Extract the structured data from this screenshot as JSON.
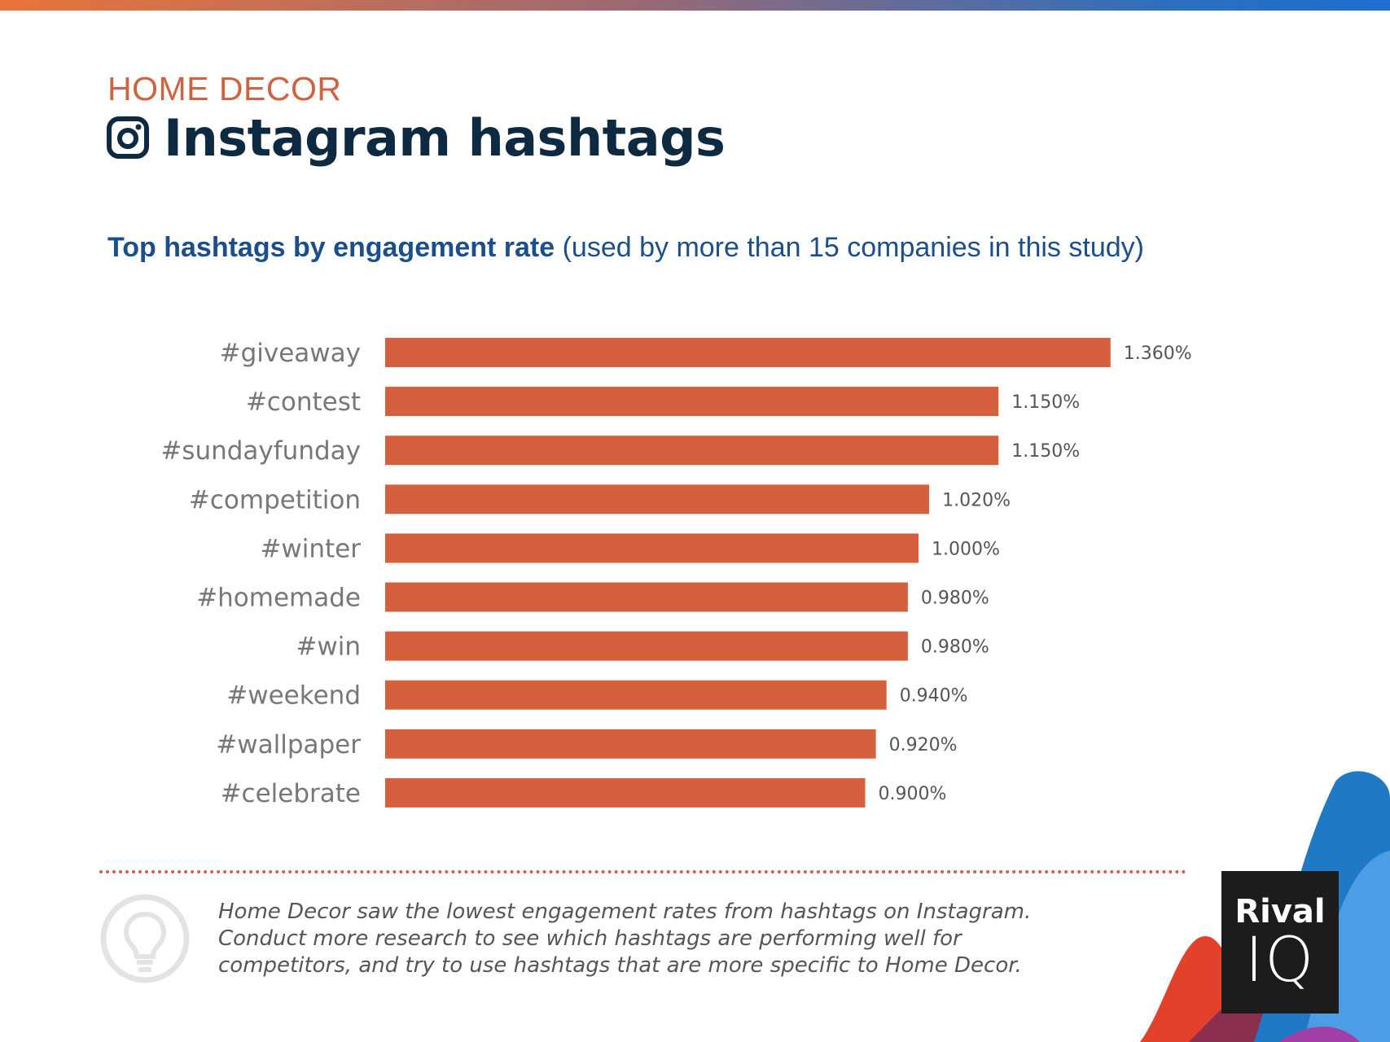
{
  "header": {
    "eyebrow": "HOME DECOR",
    "title": "Instagram hashtags",
    "icon": "instagram-icon"
  },
  "subtitle": {
    "strong": "Top hashtags by engagement rate",
    "rest": " (used by more than 15 companies in this study)"
  },
  "chart_data": {
    "type": "bar",
    "orientation": "horizontal",
    "title": "Top hashtags by engagement rate",
    "xlabel": "",
    "ylabel": "",
    "xlim": [
      0,
      1.5
    ],
    "grid": false,
    "legend": "none",
    "categories": [
      "#giveaway",
      "#contest",
      "#sundayfunday",
      "#competition",
      "#winter",
      "#homemade",
      "#win",
      "#weekend",
      "#wallpaper",
      "#celebrate"
    ],
    "values": [
      1.36,
      1.15,
      1.15,
      1.02,
      1.0,
      0.98,
      0.98,
      0.94,
      0.92,
      0.9
    ],
    "value_labels": [
      "1.360%",
      "1.150%",
      "1.150%",
      "1.020%",
      "1.000%",
      "0.980%",
      "0.980%",
      "0.940%",
      "0.920%",
      "0.900%"
    ],
    "bar_color": "#d6603d"
  },
  "footer": {
    "note": "Home Decor saw the lowest engagement rates from hashtags on Instagram. Conduct more research to see which hashtags are performing well for competitors, and try to use hashtags that are more specific to Home Decor.",
    "note_icon": "lightbulb-icon",
    "logo_line1": "Rival",
    "logo_line2": "IQ"
  },
  "colors": {
    "accent": "#d1623f",
    "title": "#0d2a42",
    "subtitle": "#1a4f8b"
  }
}
